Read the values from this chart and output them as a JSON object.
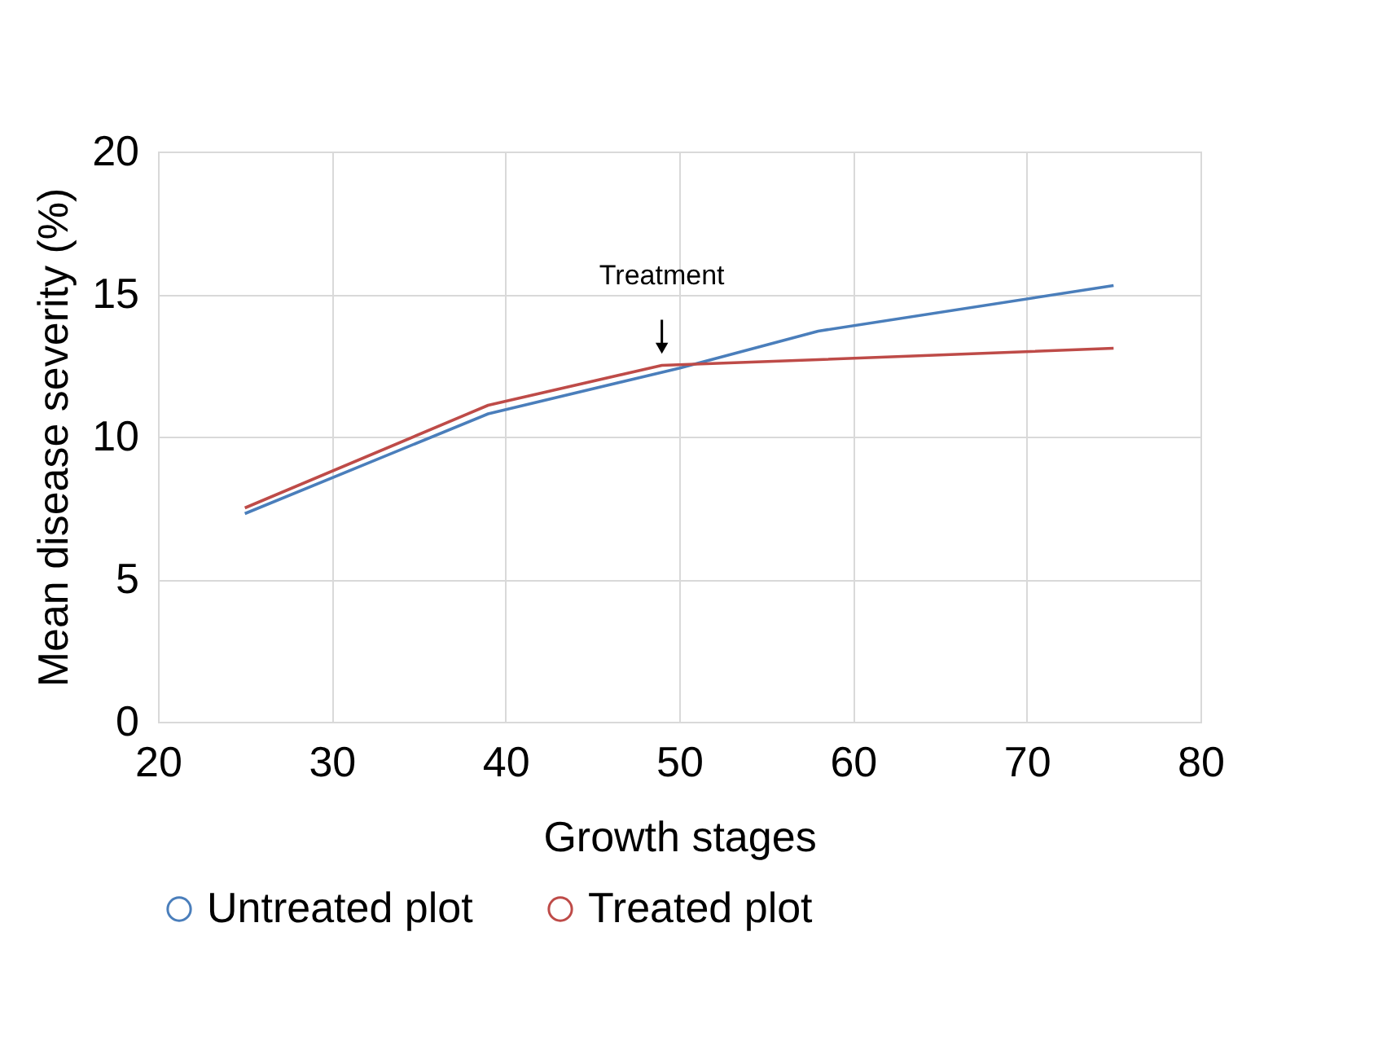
{
  "chart_data": {
    "type": "line",
    "xlabel": "Growth stages",
    "ylabel": "Mean disease severity (%)",
    "xlim": [
      20,
      80
    ],
    "xticks": [
      20,
      30,
      40,
      50,
      60,
      70,
      80
    ],
    "ylim": [
      0,
      20
    ],
    "yticks": [
      0,
      5,
      10,
      15,
      20
    ],
    "grid": true,
    "legend": "bottom",
    "marker": "none",
    "line_style": "solid",
    "annotations": [
      {
        "text": "Treatment",
        "x": 49,
        "y": 12.5
      }
    ],
    "series": [
      {
        "name": "Untreated plot",
        "color": "#4a7ebb",
        "x": [
          25,
          39,
          50,
          58,
          75
        ],
        "values": [
          7.3,
          10.8,
          12.4,
          13.7,
          15.3
        ]
      },
      {
        "name": "Treated plot",
        "color": "#be4b48",
        "x": [
          25,
          39,
          49,
          58,
          75
        ],
        "values": [
          7.5,
          11.1,
          12.5,
          12.7,
          13.1
        ]
      }
    ]
  }
}
